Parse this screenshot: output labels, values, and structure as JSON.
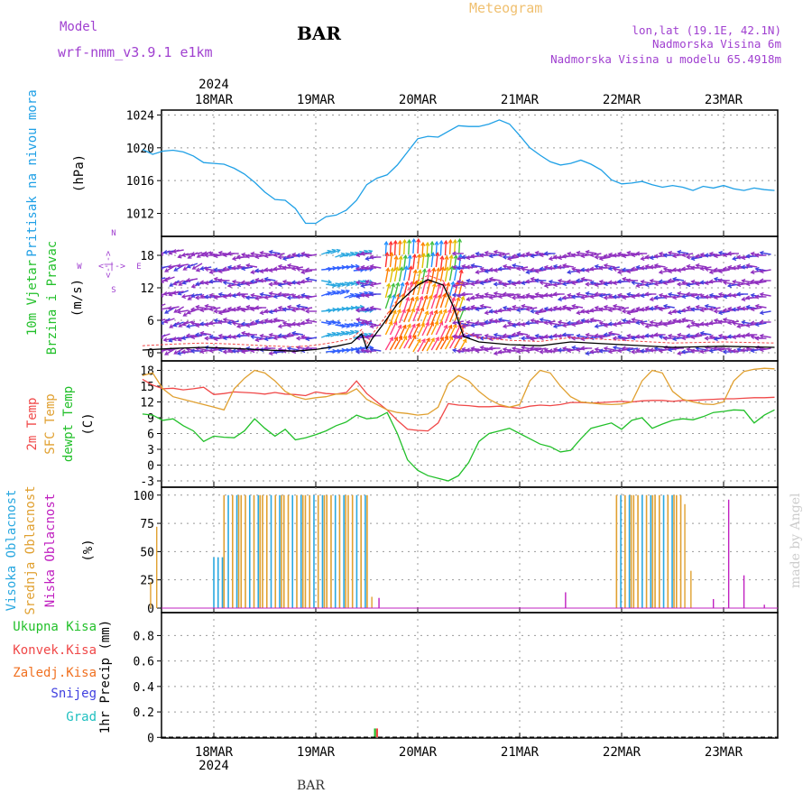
{
  "header": {
    "model_label": "Model",
    "model_name": "wrf-nmm_v3.9.1 e1km",
    "station": "BAR",
    "title": "Meteogram",
    "lonlat": "lon,lat (19.1E, 42.1N)",
    "elevation": "Nadmorska Visina 6m",
    "model_elevation": "Nadmorska Visina u modelu 65.4918m"
  },
  "footer": {
    "station": "BAR",
    "credit": "made by Angel"
  },
  "time_axis": {
    "year": "2024",
    "days": [
      "18MAR",
      "19MAR",
      "20MAR",
      "21MAR",
      "22MAR",
      "23MAR"
    ],
    "day_fraction_start": -0.7,
    "day_fraction_end": 5.5
  },
  "colors": {
    "pressure": "#1fa0e6",
    "wind_label": "#22c02a",
    "temp2m": "#f04848",
    "sfc": "#e0a030",
    "dew": "#22c02a",
    "high_cloud": "#2aa8e0",
    "mid_cloud": "#e0a030",
    "low_cloud": "#c020c0",
    "total_precip": "#22c02a",
    "conv_precip": "#f04848",
    "frz_precip": "#f07020",
    "snow": "#4040e0",
    "grad": "#20c0c0",
    "purple_text": "#a040d0",
    "orange_text": "#f0c070"
  },
  "chart_data": [
    {
      "type": "line",
      "panel": "pressure",
      "ylabel_main": "Pritisak na nivou mora",
      "ylabel_unit": "(hPa)",
      "yticks": [
        "1012",
        "1016",
        "1020",
        "1024"
      ],
      "ylim": [
        1009.2,
        1024.6
      ],
      "x": [
        -0.7,
        -0.6,
        -0.5,
        -0.4,
        -0.3,
        -0.2,
        -0.1,
        0,
        0.1,
        0.2,
        0.3,
        0.4,
        0.5,
        0.6,
        0.7,
        0.8,
        0.9,
        1.0,
        1.1,
        1.2,
        1.3,
        1.4,
        1.5,
        1.6,
        1.7,
        1.8,
        1.9,
        2.0,
        2.1,
        2.2,
        2.3,
        2.4,
        2.5,
        2.6,
        2.7,
        2.8,
        2.9,
        3.0,
        3.1,
        3.2,
        3.3,
        3.4,
        3.5,
        3.6,
        3.7,
        3.8,
        3.9,
        4.0,
        4.1,
        4.2,
        4.3,
        4.4,
        4.5,
        4.6,
        4.7,
        4.8,
        4.9,
        5.0,
        5.1,
        5.2,
        5.3,
        5.4,
        5.5
      ],
      "y": [
        1019.8,
        1019.2,
        1019.6,
        1019.7,
        1019.5,
        1019.0,
        1018.2,
        1018.1,
        1018.0,
        1017.5,
        1016.8,
        1015.8,
        1014.6,
        1013.7,
        1013.6,
        1012.6,
        1010.8,
        1010.8,
        1011.6,
        1011.8,
        1012.4,
        1013.6,
        1015.5,
        1016.3,
        1016.7,
        1017.9,
        1019.5,
        1021.1,
        1021.4,
        1021.3,
        1022.0,
        1022.7,
        1022.6,
        1022.6,
        1022.9,
        1023.4,
        1022.9,
        1021.5,
        1020.0,
        1019.1,
        1018.3,
        1017.9,
        1018.1,
        1018.5,
        1018.0,
        1017.3,
        1016.1,
        1015.6,
        1015.7,
        1015.9,
        1015.5,
        1015.2,
        1015.4,
        1015.2,
        1014.8,
        1015.3,
        1015.1,
        1015.4,
        1015.0,
        1014.8,
        1015.1,
        1014.9,
        1014.8
      ],
      "series": [
        {
          "name": "",
          "color": "#1fa0e6"
        }
      ]
    },
    {
      "type": "vector",
      "panel": "wind",
      "ylabel_main": "10m Vjetar",
      "ylabel_sub": "Brzina i Pravac",
      "ylabel_unit": "(m/s)",
      "compass": {
        "n": "N",
        "s": "S",
        "w": "W",
        "e": "E",
        "glyph": "<-|->"
      },
      "yticks": [
        "0",
        "6",
        "12",
        "18"
      ],
      "ylim": [
        -1.5,
        21.5
      ],
      "speed_x": [
        -0.7,
        -0.4,
        -0.1,
        0.2,
        0.5,
        0.8,
        1.0,
        1.2,
        1.35,
        1.45,
        1.5,
        1.55,
        1.65,
        1.8,
        2.0,
        2.1,
        2.25,
        2.35,
        2.45,
        2.6,
        2.9,
        3.2,
        3.5,
        4.0,
        4.5,
        5.0,
        5.5
      ],
      "speed_y": [
        0.5,
        0.8,
        1.0,
        0.8,
        0.5,
        0.3,
        0.6,
        1.2,
        1.8,
        3.5,
        0.8,
        2.5,
        5.0,
        9.0,
        12.5,
        13.5,
        12.5,
        8.5,
        3.0,
        2.0,
        1.5,
        1.3,
        2.0,
        1.5,
        1.0,
        1.2,
        1.0
      ]
    },
    {
      "type": "line",
      "panel": "temperature",
      "ylabel_items": [
        "2m Temp",
        "SFC Temp",
        "dewpt Temp"
      ],
      "ylabel_unit": "(C)",
      "yticks": [
        "-3",
        "0",
        "3",
        "6",
        "9",
        "12",
        "15",
        "18"
      ],
      "ylim": [
        -4.2,
        19.8
      ],
      "x": [
        -0.7,
        -0.6,
        -0.5,
        -0.4,
        -0.3,
        -0.2,
        -0.1,
        0,
        0.1,
        0.2,
        0.3,
        0.4,
        0.5,
        0.6,
        0.7,
        0.8,
        0.9,
        1.0,
        1.1,
        1.2,
        1.3,
        1.4,
        1.5,
        1.6,
        1.7,
        1.8,
        1.9,
        2.0,
        2.1,
        2.2,
        2.3,
        2.4,
        2.5,
        2.6,
        2.7,
        2.8,
        2.9,
        3.0,
        3.1,
        3.2,
        3.3,
        3.4,
        3.5,
        3.6,
        3.7,
        3.8,
        3.9,
        4.0,
        4.1,
        4.2,
        4.3,
        4.4,
        4.5,
        4.6,
        4.7,
        4.8,
        4.9,
        5.0,
        5.1,
        5.2,
        5.3,
        5.4,
        5.5
      ],
      "series": [
        {
          "name": "2m Temp",
          "color": "#f04848",
          "values": [
            16.3,
            15.2,
            14.5,
            14.6,
            14.3,
            14.5,
            14.8,
            13.4,
            13.6,
            13.9,
            13.8,
            13.7,
            13.5,
            13.8,
            13.5,
            13.4,
            13.2,
            13.9,
            13.6,
            13.5,
            13.8,
            16.0,
            13.6,
            12.0,
            10.5,
            8.5,
            6.8,
            6.6,
            6.5,
            8.0,
            11.7,
            11.4,
            11.3,
            11.1,
            11.1,
            11.2,
            11.0,
            10.8,
            11.2,
            11.4,
            11.3,
            11.5,
            11.9,
            11.9,
            11.8,
            11.9,
            12.0,
            12.1,
            12.0,
            12.2,
            12.3,
            12.3,
            12.1,
            12.3,
            12.3,
            12.4,
            12.5,
            12.6,
            12.6,
            12.7,
            12.8,
            12.8,
            12.9
          ]
        },
        {
          "name": "SFC Temp",
          "color": "#e0a030",
          "values": [
            17.0,
            17.5,
            14.5,
            13.0,
            12.5,
            12.0,
            11.5,
            11.0,
            10.5,
            14.5,
            16.5,
            18.0,
            17.5,
            16.0,
            14.0,
            13.0,
            12.5,
            12.8,
            13.0,
            13.5,
            13.5,
            14.5,
            12.5,
            11.5,
            10.5,
            10.0,
            9.8,
            9.5,
            9.7,
            11.0,
            15.5,
            17.0,
            16.0,
            14.0,
            12.5,
            11.5,
            11.0,
            11.5,
            16.0,
            18.0,
            17.5,
            15.0,
            13.0,
            12.0,
            11.8,
            11.6,
            11.5,
            11.6,
            12.0,
            16.0,
            18.0,
            17.5,
            14.0,
            12.5,
            12.0,
            11.6,
            11.5,
            12.0,
            16.0,
            17.8,
            18.2,
            18.4,
            18.3
          ]
        },
        {
          "name": "dewpt Temp",
          "color": "#22c02a",
          "values": [
            9.7,
            9.5,
            8.5,
            8.8,
            7.5,
            6.5,
            4.5,
            5.5,
            5.3,
            5.2,
            6.5,
            8.8,
            7.0,
            5.5,
            6.8,
            4.8,
            5.2,
            5.8,
            6.5,
            7.5,
            8.2,
            9.5,
            8.8,
            9.0,
            10.0,
            6.0,
            1.0,
            -1.0,
            -2.0,
            -2.5,
            -3.0,
            -2.0,
            0.5,
            4.5,
            6.0,
            6.5,
            7.0,
            6.0,
            5.0,
            4.0,
            3.5,
            2.5,
            2.8,
            5.0,
            7.0,
            7.5,
            8.0,
            6.8,
            8.5,
            9.0,
            7.0,
            7.8,
            8.5,
            8.8,
            8.6,
            9.2,
            10.0,
            10.2,
            10.5,
            10.4,
            8.0,
            9.5,
            10.5
          ]
        }
      ]
    },
    {
      "type": "bar",
      "panel": "clouds",
      "ylabel_items": [
        "Visoka Oblacnost",
        "Srednja Oblacnost",
        "Niska Oblacnost"
      ],
      "ylabel_unit": "(%)",
      "yticks": [
        "0",
        "25",
        "50",
        "75",
        "100"
      ],
      "ylim": [
        -4,
        107
      ],
      "blocks": [
        {
          "start": 0.0,
          "end": 0.1,
          "value": 45,
          "mix": "high"
        },
        {
          "start": 0.1,
          "end": 1.5,
          "value": 100,
          "mix": "all"
        },
        {
          "start": 3.95,
          "end": 4.6,
          "value": 100,
          "mix": "all"
        }
      ],
      "sparse_bars": [
        {
          "x": -0.62,
          "series": "mid",
          "value": 23
        },
        {
          "x": -0.56,
          "series": "mid",
          "value": 72
        },
        {
          "x": 1.55,
          "series": "mid",
          "value": 10
        },
        {
          "x": 1.62,
          "series": "low",
          "value": 9
        },
        {
          "x": 3.45,
          "series": "low",
          "value": 14
        },
        {
          "x": 4.62,
          "series": "mid",
          "value": 92
        },
        {
          "x": 4.68,
          "series": "mid",
          "value": 33
        },
        {
          "x": 4.9,
          "series": "low",
          "value": 8
        },
        {
          "x": 5.05,
          "series": "low",
          "value": 96
        },
        {
          "x": 5.2,
          "series": "low",
          "value": 29
        },
        {
          "x": 5.4,
          "series": "low",
          "value": 3
        }
      ]
    },
    {
      "type": "bar",
      "panel": "precipitation",
      "ylabel_items": [
        "Ukupna Kisa",
        "Konvek.Kisa",
        "Zaledj.Kisa",
        "Snijeg",
        "Grad"
      ],
      "ylabel_unit": "1hr Precip (mm)",
      "yticks": [
        "0",
        "0.2",
        "0.4",
        "0.6",
        "0.8"
      ],
      "ylim": [
        -0.005,
        0.98
      ],
      "bars": [
        {
          "x": 1.58,
          "series": "total",
          "value": 0.07
        },
        {
          "x": 1.6,
          "series": "conv",
          "value": 0.07
        }
      ]
    }
  ]
}
